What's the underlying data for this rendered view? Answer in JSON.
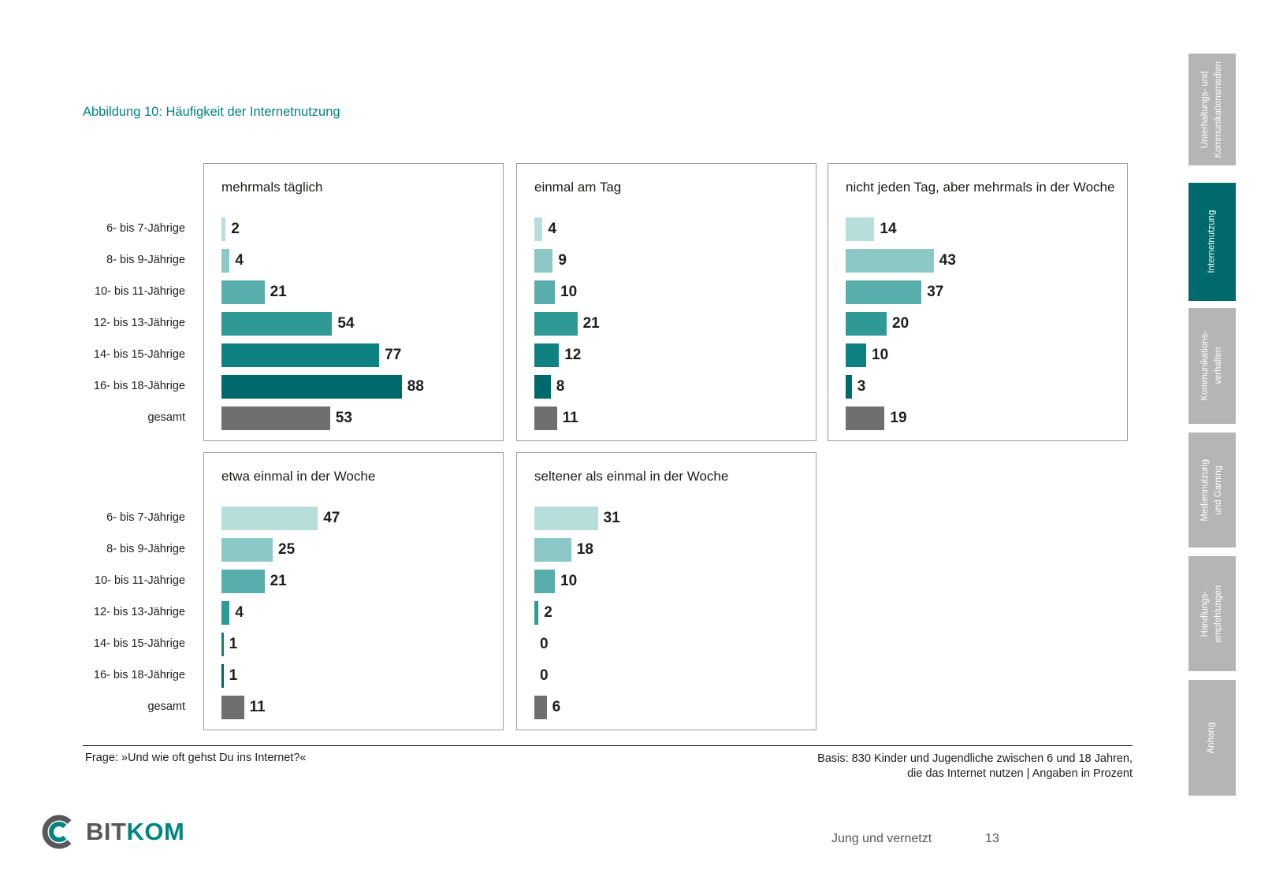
{
  "page": {
    "title": "Abbildung 10: Häufigkeit der Internetnutzung",
    "question": "Frage: »Und wie oft gehst Du ins Internet?«",
    "basis_line1": "Basis: 830 Kinder und Jugendliche zwischen 6 und 18 Jahren,",
    "basis_line2": "die das Internet nutzen | Angaben in Prozent",
    "footer_title": "Jung und vernetzt",
    "page_number": "13",
    "logo": {
      "bit": "BIT",
      "kom": "KOM"
    }
  },
  "sidebar": {
    "tabs": [
      {
        "label": "Unterhaltungs- und\nKommunikationsmedien",
        "active": false
      },
      {
        "label": "Internetnutzung",
        "active": true
      },
      {
        "label": "Kommunikations-\nverhalten",
        "active": false
      },
      {
        "label": "Mediennutzung\nund Gaming",
        "active": false
      },
      {
        "label": "Handlungs-\nempfehlungen",
        "active": false
      },
      {
        "label": "Anhang",
        "active": false
      }
    ]
  },
  "chart_data": {
    "type": "bar",
    "orientation": "horizontal",
    "title": "Abbildung 10: Häufigkeit der Internetnutzung",
    "unit": "Prozent",
    "xlim": [
      0,
      100
    ],
    "categories": [
      "6- bis 7-Jährige",
      "8- bis 9-Jährige",
      "10- bis 11-Jährige",
      "12- bis 13-Jährige",
      "14- bis 15-Jährige",
      "16- bis 18-Jährige",
      "gesamt"
    ],
    "bar_colors": [
      "#b7dedb",
      "#8cc8c5",
      "#57aeab",
      "#2f9996",
      "#0e8283",
      "#00696c",
      "#706f6f"
    ],
    "panels": [
      {
        "title": "mehrmals täglich",
        "values": [
          2,
          4,
          21,
          54,
          77,
          88,
          53
        ]
      },
      {
        "title": "einmal am Tag",
        "values": [
          4,
          9,
          10,
          21,
          12,
          8,
          11
        ]
      },
      {
        "title": "nicht jeden Tag, aber mehrmals in der Woche",
        "values": [
          14,
          43,
          37,
          20,
          10,
          3,
          19
        ]
      },
      {
        "title": "etwa einmal in der Woche",
        "values": [
          47,
          25,
          21,
          4,
          1,
          1,
          11
        ]
      },
      {
        "title": "seltener als einmal in der Woche",
        "values": [
          31,
          18,
          10,
          2,
          0,
          0,
          6
        ]
      }
    ]
  }
}
